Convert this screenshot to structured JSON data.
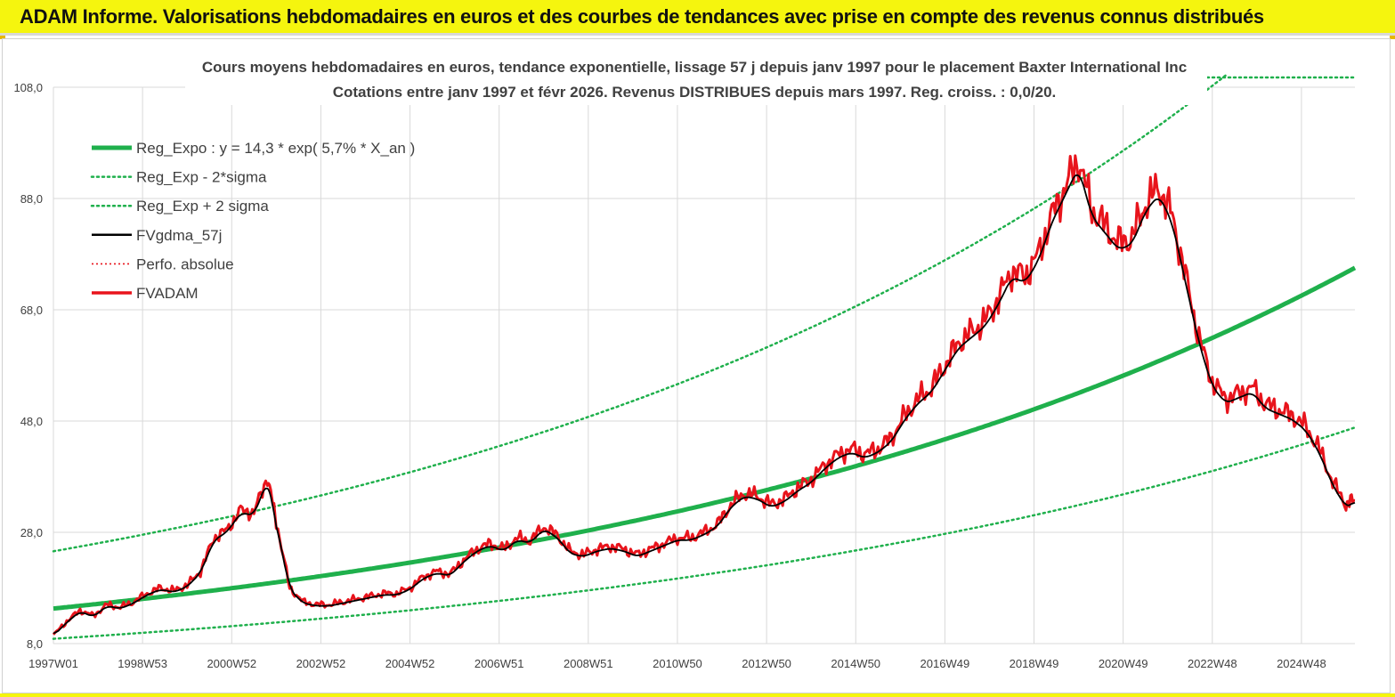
{
  "banner": {
    "title": "ADAM Informe. Valorisations hebdomadaires en euros et des courbes de tendances avec prise en compte des revenus connus distribués"
  },
  "colors": {
    "banner_bg": "#f5f50e",
    "reg_expo": "#1fb04c",
    "sigma": "#1fb04c",
    "fvgdma": "#000000",
    "fvadam": "#e8141c",
    "perfo": "#e8141c",
    "grid": "#d9d9d9"
  },
  "chart_data": {
    "type": "line",
    "title_line1": "Cours moyens hebdomadaires en euros, tendance exponentielle, lissage 57 j depuis janv 1997 pour le placement Baxter International Inc",
    "title_line2": "Cotations entre janv 1997 et févr 2026. Revenus DISTRIBUES depuis mars 1997. Reg. croiss. : 0,0/20.",
    "xlabel": "",
    "ylabel": "",
    "ylim": [
      8,
      108
    ],
    "xlim": [
      1997.0,
      2026.2
    ],
    "y_ticks": [
      "8,0",
      "28,0",
      "48,0",
      "68,0",
      "88,0",
      "108,0"
    ],
    "y_tick_values": [
      8,
      28,
      48,
      68,
      88,
      108
    ],
    "x_ticks": [
      "1997W01",
      "1998W53",
      "2000W52",
      "2002W52",
      "2004W52",
      "2006W51",
      "2008W51",
      "2010W50",
      "2012W50",
      "2014W50",
      "2016W49",
      "2018W49",
      "2020W49",
      "2022W48",
      "2024W48"
    ],
    "x_tick_values": [
      1997.0,
      1999.0,
      2001.0,
      2003.0,
      2005.0,
      2007.0,
      2009.0,
      2011.0,
      2013.0,
      2015.0,
      2017.0,
      2019.0,
      2021.0,
      2023.0,
      2025.0
    ],
    "grid": true,
    "legend_position": "top-left",
    "regression": {
      "a": 14.3,
      "rate": 0.057,
      "lower_factor": 0.62,
      "upper_factor": 1.72
    },
    "series": [
      {
        "name": "Reg_Expo : y = 14,3 * exp( 5,7% *  X_an )",
        "style": "thick-green"
      },
      {
        "name": "Reg_Exp - 2*sigma",
        "style": "dotted-green"
      },
      {
        "name": "Reg_Exp + 2 sigma",
        "style": "dotted-green"
      },
      {
        "name": "FVgdma_57j",
        "style": "black",
        "values": []
      },
      {
        "name": "Perfo. absolue",
        "style": "dotted-red"
      },
      {
        "name": "FVADAM",
        "style": "red",
        "x": [
          1997.0,
          1997.3,
          1997.6,
          1997.9,
          1998.2,
          1998.5,
          1998.8,
          1999.1,
          1999.4,
          1999.7,
          2000.0,
          2000.3,
          2000.6,
          2000.9,
          2001.2,
          2001.5,
          2001.8,
          2002.0,
          2002.3,
          2002.6,
          2002.9,
          2003.2,
          2003.5,
          2003.8,
          2004.1,
          2004.4,
          2004.7,
          2005.0,
          2005.3,
          2005.6,
          2005.9,
          2006.2,
          2006.5,
          2006.8,
          2007.1,
          2007.4,
          2007.7,
          2008.0,
          2008.3,
          2008.6,
          2008.9,
          2009.2,
          2009.5,
          2009.8,
          2010.1,
          2010.4,
          2010.7,
          2011.0,
          2011.3,
          2011.6,
          2011.9,
          2012.2,
          2012.5,
          2012.8,
          2013.1,
          2013.4,
          2013.7,
          2014.0,
          2014.3,
          2014.6,
          2014.9,
          2015.2,
          2015.5,
          2015.8,
          2016.1,
          2016.4,
          2016.7,
          2017.0,
          2017.3,
          2017.6,
          2017.9,
          2018.2,
          2018.5,
          2018.8,
          2019.1,
          2019.4,
          2019.7,
          2020.0,
          2020.3,
          2020.6,
          2020.9,
          2021.2,
          2021.5,
          2021.8,
          2022.1,
          2022.4,
          2022.7,
          2023.0,
          2023.3,
          2023.6,
          2023.9,
          2024.2,
          2024.5,
          2024.8,
          2025.1,
          2025.4,
          2025.7,
          2026.0,
          2026.2
        ],
        "values": [
          9.5,
          12.0,
          14.0,
          13.0,
          15.0,
          14.5,
          15.5,
          17.0,
          18.0,
          17.5,
          18.5,
          21.0,
          27.0,
          28.5,
          32.0,
          31.5,
          38.0,
          30.0,
          18.0,
          15.5,
          15.0,
          15.0,
          15.5,
          16.0,
          16.5,
          17.0,
          17.0,
          18.0,
          20.0,
          21.0,
          20.5,
          23.0,
          25.0,
          26.0,
          25.0,
          27.0,
          26.5,
          29.0,
          27.5,
          24.5,
          24.0,
          25.0,
          25.5,
          25.0,
          24.0,
          25.0,
          26.0,
          27.0,
          27.0,
          28.0,
          29.5,
          33.0,
          35.0,
          34.5,
          33.0,
          34.0,
          36.0,
          37.5,
          40.0,
          42.0,
          43.0,
          42.0,
          43.0,
          45.0,
          49.0,
          52.0,
          54.0,
          58.0,
          62.0,
          64.0,
          66.0,
          70.0,
          75.0,
          74.0,
          78.0,
          85.0,
          90.0,
          95.0,
          86.0,
          83.0,
          80.0,
          81.0,
          87.0,
          90.0,
          85.0,
          74.0,
          63.0,
          55.0,
          52.0,
          53.0,
          54.0,
          51.0,
          50.0,
          49.0,
          47.0,
          43.0,
          37.0,
          33.0,
          34.0
        ]
      }
    ]
  }
}
